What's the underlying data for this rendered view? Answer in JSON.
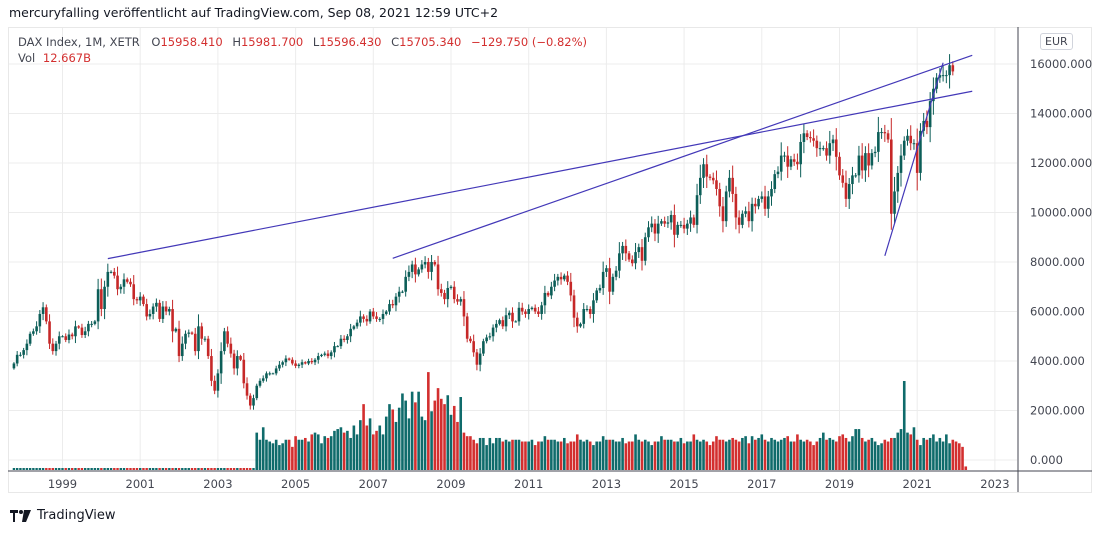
{
  "header": {
    "attribution": "mercuryfalling veröffentlicht auf TradingView.com, Sep 08, 2021 12:59 UTC+2"
  },
  "legend": {
    "symbol": "DAX Index, 1M, XETR",
    "open_label": "O",
    "open": "15958.410",
    "high_label": "H",
    "high": "15981.700",
    "low_label": "L",
    "low": "15596.430",
    "close_label": "C",
    "close": "15705.340",
    "change": "−129.750 (−0.82%)",
    "vol_label": "Vol",
    "vol": "12.667B"
  },
  "currency": "EUR",
  "footer": {
    "brand": "TradingView"
  },
  "colors": {
    "up": "#0c5e58",
    "down": "#c62828",
    "trendline": "#4338b8",
    "grid": "#ececec",
    "axis": "#434651",
    "volume_up": "#0f6b6b",
    "volume_down": "#d32f2f"
  },
  "chart_data": {
    "type": "candlestick",
    "title": "DAX Index, 1M, XETR",
    "xlabel": "",
    "ylabel": "EUR",
    "ylim": [
      0,
      17000
    ],
    "y_ticks": [
      "0.000",
      "2000.000",
      "4000.000",
      "6000.000",
      "8000.000",
      "10000.000",
      "12000.000",
      "14000.000",
      "16000.000"
    ],
    "x_ticks": [
      "1999",
      "2001",
      "2003",
      "2005",
      "2007",
      "2009",
      "2011",
      "2013",
      "2015",
      "2017",
      "2019",
      "2021",
      "2023"
    ],
    "grid": true,
    "start": "1997-10",
    "closes": [
      3900,
      4250,
      4250,
      4440,
      4700,
      5100,
      5200,
      5400,
      5900,
      6170,
      5600,
      4700,
      4400,
      4700,
      5000,
      5000,
      4850,
      5070,
      5000,
      5400,
      5350,
      5050,
      5200,
      5500,
      5500,
      5600,
      6900,
      6100,
      7000,
      7600,
      7600,
      7450,
      6900,
      7000,
      7300,
      7200,
      7100,
      6500,
      6450,
      6600,
      6300,
      5800,
      5900,
      6200,
      6350,
      5700,
      6200,
      6000,
      6100,
      5200,
      5300,
      4200,
      4700,
      5100,
      5150,
      5100,
      4400,
      5400,
      4900,
      4900,
      4200,
      3200,
      2800,
      3500,
      4400,
      5200,
      4700,
      4300,
      3700,
      4200,
      4050,
      3100,
      2600,
      2200,
      2500,
      3000,
      3200,
      3300,
      3500,
      3500,
      3500,
      3700,
      3850,
      3950,
      4100,
      4050,
      3900,
      3800,
      3850,
      3950,
      3900,
      4000,
      3950,
      4050,
      4200,
      4250,
      4300,
      4200,
      4350,
      4600,
      4600,
      4900,
      4850,
      5000,
      5300,
      5400,
      5550,
      5800,
      5700,
      5600,
      6000,
      5800,
      5700,
      5700,
      5900,
      6000,
      6300,
      6250,
      6600,
      6800,
      6800,
      7400,
      7600,
      7900,
      7500,
      7700,
      7900,
      8000,
      7600,
      8000,
      7900,
      6900,
      6750,
      6500,
      6950,
      7000,
      6500,
      6400,
      6500,
      5800,
      4900,
      4800,
      4350,
      3850,
      4300,
      4800,
      4950,
      5000,
      5350,
      5500,
      5650,
      5400,
      5850,
      5950,
      5600,
      5600,
      6150,
      6000,
      5900,
      6100,
      6150,
      6000,
      5900,
      6250,
      6750,
      6650,
      7000,
      7250,
      7400,
      7300,
      7450,
      7200,
      6650,
      5750,
      5400,
      5500,
      6100,
      6100,
      5900,
      6450,
      6850,
      6950,
      7600,
      7750,
      6800,
      7400,
      7650,
      8350,
      8650,
      8350,
      8100,
      7950,
      8400,
      8600,
      8050,
      9000,
      9400,
      9550,
      9150,
      9550,
      9650,
      9550,
      9600,
      9900,
      9100,
      9500,
      9500,
      9350,
      9550,
      9800,
      9500,
      10700,
      11400,
      11950,
      11450,
      11400,
      11300,
      10950,
      10250,
      9650,
      10850,
      11400,
      10750,
      9800,
      9500,
      9950,
      10050,
      9650,
      10350,
      10250,
      10550,
      10650,
      10150,
      10650,
      10950,
      11550,
      11650,
      12300,
      12300,
      11850,
      12150,
      12050,
      11950,
      12850,
      13200,
      13050,
      13000,
      12900,
      12600,
      12600,
      12600,
      12300,
      12800,
      12950,
      12250,
      11500,
      11200,
      10550,
      11150,
      11500,
      11500,
      12300,
      11700,
      12400,
      11900,
      12400,
      12450,
      13250,
      13250,
      13200,
      12950,
      9950,
      10850,
      11600,
      12300,
      12900,
      13100,
      12800,
      12800,
      11600,
      13300,
      13700,
      13450,
      14500,
      15000,
      15450,
      15550,
      15550,
      15550,
      15950,
      15700
    ],
    "volume_start": "2004-01",
    "volume_billions": [
      21,
      17,
      24,
      17,
      16,
      15,
      17,
      14,
      15,
      17,
      17,
      13,
      19,
      17,
      17,
      18,
      16,
      20,
      21,
      20,
      15,
      19,
      18,
      19,
      22,
      23,
      24,
      21,
      22,
      18,
      25,
      20,
      28,
      37,
      25,
      29,
      20,
      22,
      25,
      20,
      30,
      37,
      34,
      27,
      35,
      43,
      39,
      29,
      44,
      38,
      44,
      30,
      28,
      55,
      33,
      39,
      46,
      40,
      37,
      42,
      31,
      36,
      27,
      41,
      21,
      19,
      19,
      17,
      15,
      18,
      18,
      14,
      18,
      15,
      18,
      18,
      16,
      17,
      16,
      17,
      17,
      17,
      16,
      16,
      16,
      17,
      14,
      16,
      16,
      19,
      17,
      17,
      17,
      16,
      16,
      18,
      15,
      16,
      16,
      20,
      17,
      16,
      17,
      16,
      14,
      16,
      16,
      19,
      17,
      17,
      17,
      16,
      16,
      18,
      15,
      16,
      16,
      20,
      17,
      16,
      17,
      16,
      14,
      16,
      16,
      19,
      17,
      17,
      17,
      16,
      16,
      18,
      15,
      16,
      16,
      20,
      17,
      16,
      17,
      16,
      14,
      16,
      19,
      17,
      17,
      16,
      17,
      18,
      17,
      16,
      18,
      19,
      15,
      19,
      17,
      18,
      20,
      17,
      16,
      18,
      17,
      16,
      17,
      18,
      19,
      16,
      16,
      20,
      17,
      16,
      17,
      16,
      14,
      16,
      18,
      21,
      17,
      18,
      17,
      16,
      19,
      20,
      18,
      16,
      19,
      23,
      23,
      18,
      16,
      17,
      18,
      16,
      14,
      15,
      17,
      16,
      18,
      18,
      21,
      23,
      50,
      21,
      20,
      24,
      17,
      14,
      18,
      17,
      18,
      20,
      16,
      18,
      16,
      20,
      15,
      17,
      16,
      15,
      13,
      2
    ]
  },
  "trendlines": [
    {
      "name": "trendline-2000-peak",
      "from": {
        "date": "2000-03",
        "value": 8136
      },
      "to": {
        "date": "2022-06",
        "value": 14900
      }
    },
    {
      "name": "trendline-2007-peak",
      "from": {
        "date": "2007-07",
        "value": 8150
      },
      "to": {
        "date": "2022-06",
        "value": 16350
      }
    },
    {
      "name": "trendline-2020-low",
      "from": {
        "date": "2020-03",
        "value": 8250
      },
      "to": {
        "date": "2021-09",
        "value": 16050
      }
    }
  ]
}
